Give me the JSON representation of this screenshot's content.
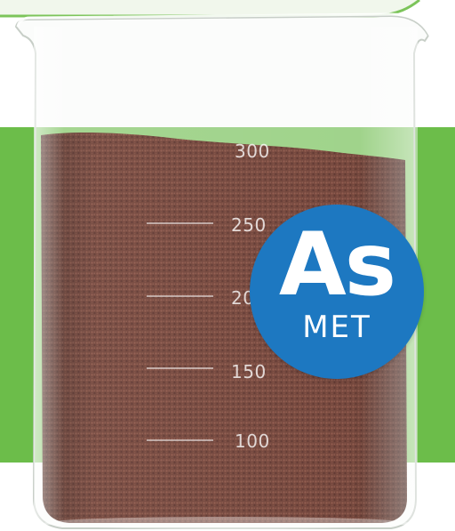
{
  "beaker": {
    "scale_labels": [
      "300",
      "250",
      "200",
      "150",
      "100"
    ]
  },
  "badge": {
    "symbol": "As",
    "subtitle": "MET"
  },
  "colors": {
    "background": "#ffffff",
    "band": "#6cbd4a",
    "badge": "#1d78c1",
    "media": "#6e3e33",
    "text_on_badge": "#ffffff"
  }
}
